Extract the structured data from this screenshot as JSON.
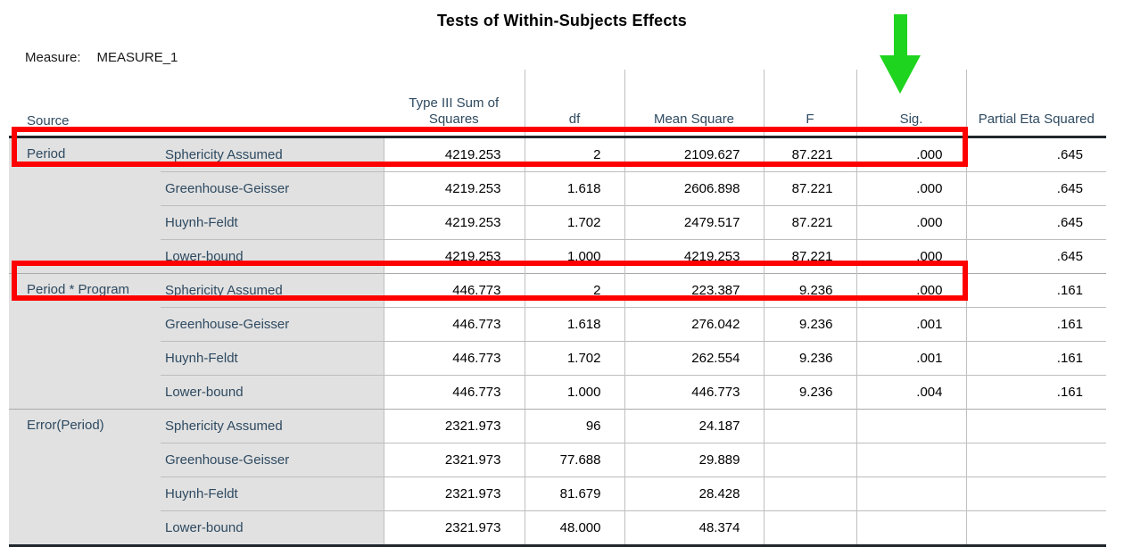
{
  "title": "Tests of Within-Subjects Effects",
  "measure": {
    "label": "Measure:",
    "value": "MEASURE_1"
  },
  "annotations": {
    "arrow_icon": "green-down-arrow",
    "arrow_color": "#1fd41f",
    "arrow_points_to": "Sig.",
    "highlight_color": "#fe0000",
    "highlighted_rows": [
      "Period / Sphericity Assumed through Sig.",
      "Period * Program / Sphericity Assumed through Sig."
    ]
  },
  "colors": {
    "header_text": "#2e4a61",
    "label_cell_background": "#e1e1e1",
    "grid_line": "#c0c0c0",
    "heavy_rule": "#20262c"
  },
  "chart_data": {
    "type": "table",
    "title": "Tests of Within-Subjects Effects",
    "measure": "MEASURE_1",
    "columns": [
      "Source",
      "",
      "Type III Sum of Squares",
      "df",
      "Mean Square",
      "F",
      "Sig.",
      "Partial Eta Squared"
    ],
    "groups": [
      {
        "source": "Period",
        "rows": [
          {
            "method": "Sphericity Assumed",
            "ss": "4219.253",
            "df": "2",
            "ms": "2109.627",
            "f": "87.221",
            "sig": ".000",
            "peta": ".645"
          },
          {
            "method": "Greenhouse-Geisser",
            "ss": "4219.253",
            "df": "1.618",
            "ms": "2606.898",
            "f": "87.221",
            "sig": ".000",
            "peta": ".645"
          },
          {
            "method": "Huynh-Feldt",
            "ss": "4219.253",
            "df": "1.702",
            "ms": "2479.517",
            "f": "87.221",
            "sig": ".000",
            "peta": ".645"
          },
          {
            "method": "Lower-bound",
            "ss": "4219.253",
            "df": "1.000",
            "ms": "4219.253",
            "f": "87.221",
            "sig": ".000",
            "peta": ".645"
          }
        ]
      },
      {
        "source": "Period * Program",
        "rows": [
          {
            "method": "Sphericity Assumed",
            "ss": "446.773",
            "df": "2",
            "ms": "223.387",
            "f": "9.236",
            "sig": ".000",
            "peta": ".161"
          },
          {
            "method": "Greenhouse-Geisser",
            "ss": "446.773",
            "df": "1.618",
            "ms": "276.042",
            "f": "9.236",
            "sig": ".001",
            "peta": ".161"
          },
          {
            "method": "Huynh-Feldt",
            "ss": "446.773",
            "df": "1.702",
            "ms": "262.554",
            "f": "9.236",
            "sig": ".001",
            "peta": ".161"
          },
          {
            "method": "Lower-bound",
            "ss": "446.773",
            "df": "1.000",
            "ms": "446.773",
            "f": "9.236",
            "sig": ".004",
            "peta": ".161"
          }
        ]
      },
      {
        "source": "Error(Period)",
        "rows": [
          {
            "method": "Sphericity Assumed",
            "ss": "2321.973",
            "df": "96",
            "ms": "24.187",
            "f": "",
            "sig": "",
            "peta": ""
          },
          {
            "method": "Greenhouse-Geisser",
            "ss": "2321.973",
            "df": "77.688",
            "ms": "29.889",
            "f": "",
            "sig": "",
            "peta": ""
          },
          {
            "method": "Huynh-Feldt",
            "ss": "2321.973",
            "df": "81.679",
            "ms": "28.428",
            "f": "",
            "sig": "",
            "peta": ""
          },
          {
            "method": "Lower-bound",
            "ss": "2321.973",
            "df": "48.000",
            "ms": "48.374",
            "f": "",
            "sig": "",
            "peta": ""
          }
        ]
      }
    ]
  }
}
